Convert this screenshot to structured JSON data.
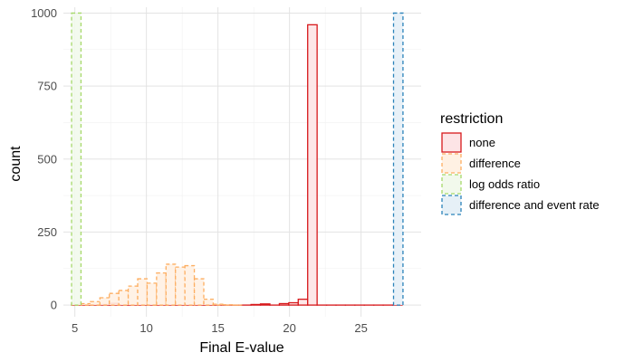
{
  "chart_data": {
    "type": "bar",
    "subtype": "overlapping-histogram",
    "xlabel": "Final E-value",
    "ylabel": "count",
    "xlim": [
      4.2,
      29.2
    ],
    "ylim": [
      -40,
      1020
    ],
    "xticks": [
      5,
      10,
      15,
      20,
      25
    ],
    "yticks": [
      0,
      250,
      500,
      750,
      1000
    ],
    "grid": true,
    "legend": {
      "title": "restriction",
      "placement": "right"
    },
    "bin_width": 0.66,
    "series": [
      {
        "name": "none",
        "color": "#d7191c",
        "fill": "#fde4e6",
        "dash": "solid",
        "x": [
          5.1,
          5.76,
          6.42,
          7.08,
          7.74,
          8.4,
          9.06,
          9.72,
          10.38,
          11.04,
          11.7,
          12.36,
          13.02,
          13.68,
          14.34,
          15.0,
          15.66,
          16.32,
          16.98,
          17.64,
          18.3,
          18.96,
          19.62,
          20.28,
          20.94,
          21.6,
          22.26,
          22.92,
          23.58,
          24.24,
          24.9,
          25.56,
          26.22,
          26.88,
          27.54
        ],
        "values": [
          0,
          0,
          0,
          2,
          6,
          0,
          0,
          0,
          0,
          0,
          0,
          0,
          0,
          0,
          0,
          0,
          0,
          0,
          0,
          2,
          4,
          0,
          5,
          8,
          20,
          960,
          0,
          0,
          0,
          0,
          0,
          0,
          0,
          0,
          0
        ]
      },
      {
        "name": "difference",
        "color": "#fdae61",
        "fill": "#fff1e3",
        "dash": "dashed",
        "x": [
          5.1,
          5.76,
          6.42,
          7.08,
          7.74,
          8.4,
          9.06,
          9.72,
          10.38,
          11.04,
          11.7,
          12.36,
          13.02,
          13.68,
          14.34,
          15.0,
          15.66,
          16.32
        ],
        "values": [
          3,
          5,
          12,
          25,
          40,
          50,
          65,
          90,
          75,
          110,
          140,
          130,
          135,
          90,
          20,
          3,
          1,
          0
        ]
      },
      {
        "name": "log odds ratio",
        "color": "#a6d96a",
        "fill": "#f2f9ec",
        "dash": "dashed",
        "x": [
          5.1
        ],
        "values": [
          1000
        ]
      },
      {
        "name": "difference and event rate",
        "color": "#2b83ba",
        "fill": "#e6f0f7",
        "dash": "dashed",
        "x": [
          27.6
        ],
        "values": [
          1000
        ]
      }
    ]
  }
}
